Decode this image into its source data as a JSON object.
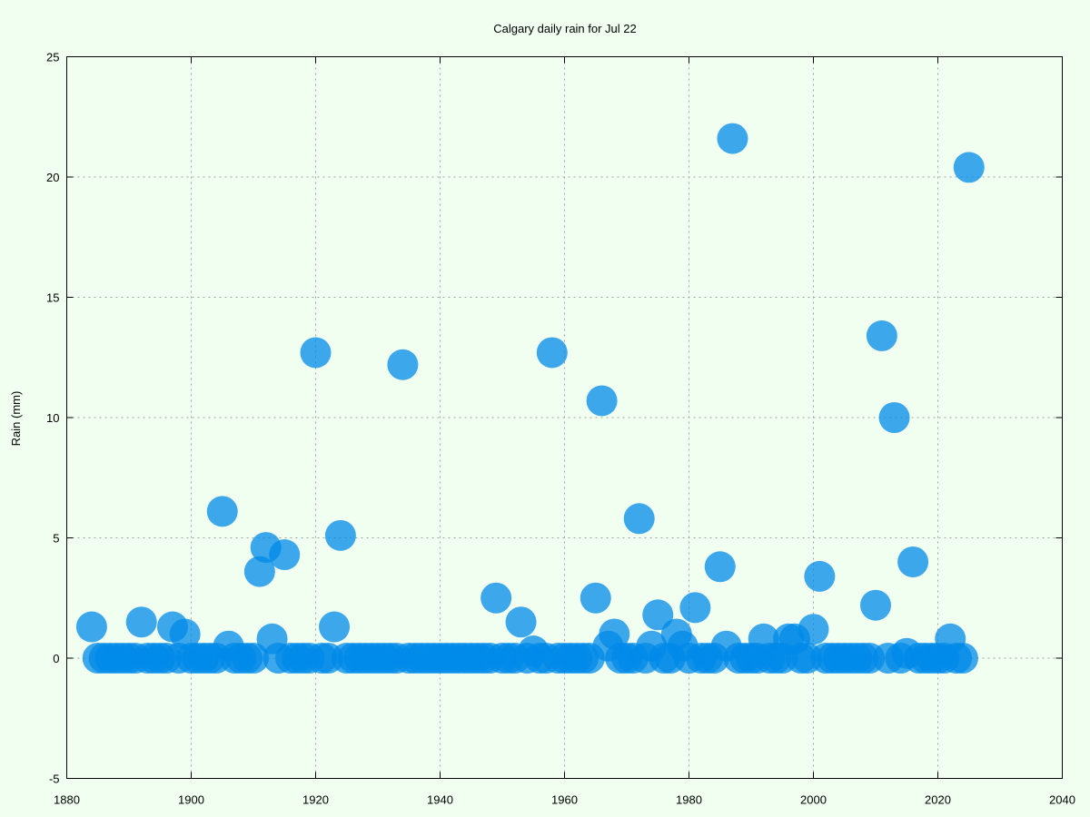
{
  "colors": {
    "background": "#f0fff0",
    "point": "#008ae8",
    "axis": "#000000",
    "grid": "#a0a0a0"
  },
  "chart_data": {
    "type": "scatter",
    "title": "Calgary daily rain for Jul 22",
    "xlabel": "",
    "ylabel": "Rain (mm)",
    "xlim": [
      1880,
      2040
    ],
    "ylim": [
      -5,
      25
    ],
    "x_ticks": [
      1880,
      1900,
      1920,
      1940,
      1960,
      1980,
      2000,
      2020,
      2040
    ],
    "y_ticks": [
      -5,
      0,
      5,
      10,
      15,
      20,
      25
    ],
    "grid": true,
    "legend": "none",
    "series": [
      {
        "x": [
          1884,
          1885,
          1886,
          1887,
          1888,
          1889,
          1890,
          1891,
          1892,
          1893,
          1894,
          1895,
          1896,
          1897,
          1898,
          1899,
          1900,
          1901,
          1902,
          1903,
          1904,
          1905,
          1906,
          1907,
          1908,
          1909,
          1910,
          1911,
          1912,
          1913,
          1914,
          1915,
          1916,
          1917,
          1918,
          1919,
          1920,
          1921,
          1922,
          1923,
          1924,
          1925,
          1926,
          1927,
          1928,
          1929,
          1930,
          1931,
          1932,
          1933,
          1934,
          1935,
          1936,
          1937,
          1938,
          1939,
          1940,
          1941,
          1942,
          1943,
          1944,
          1945,
          1946,
          1947,
          1948,
          1949,
          1950,
          1951,
          1952,
          1953,
          1954,
          1955,
          1956,
          1957,
          1958,
          1959,
          1960,
          1961,
          1962,
          1963,
          1964,
          1965,
          1966,
          1967,
          1968,
          1969,
          1970,
          1971,
          1972,
          1973,
          1974,
          1975,
          1976,
          1977,
          1978,
          1979,
          1980,
          1981,
          1982,
          1983,
          1984,
          1985,
          1986,
          1987,
          1988,
          1989,
          1990,
          1991,
          1992,
          1993,
          1994,
          1995,
          1996,
          1997,
          1998,
          1999,
          2000,
          2001,
          2002,
          2003,
          2004,
          2005,
          2006,
          2007,
          2008,
          2009,
          2010,
          2011,
          2012,
          2013,
          2014,
          2015,
          2016,
          2017,
          2018,
          2019,
          2020,
          2021,
          2022,
          2023,
          2024,
          2025
        ],
        "y": [
          1.3,
          0,
          0,
          0,
          0,
          0,
          0,
          0,
          1.5,
          0,
          0,
          0,
          0,
          1.3,
          0,
          1.0,
          0,
          0,
          0,
          0,
          0,
          6.1,
          0.5,
          0,
          0,
          0,
          0,
          3.6,
          4.6,
          0.8,
          0,
          4.3,
          0,
          0,
          0,
          0,
          12.7,
          0,
          0,
          1.3,
          5.1,
          0,
          0,
          0,
          0,
          0,
          0,
          0,
          0,
          0,
          12.2,
          0,
          0,
          0,
          0,
          0,
          0,
          0,
          0,
          0,
          0,
          0,
          0,
          0,
          0,
          2.5,
          0,
          0,
          0,
          1.5,
          0,
          0.3,
          0,
          0,
          12.7,
          0,
          0,
          0,
          0,
          0,
          0,
          2.5,
          10.7,
          0.5,
          1.0,
          0,
          0,
          0,
          5.8,
          0,
          0.5,
          1.8,
          0,
          0,
          1.0,
          0.5,
          0,
          2.1,
          0,
          0,
          0,
          3.8,
          0.5,
          21.6,
          0,
          0,
          0,
          0,
          0.8,
          0,
          0,
          0,
          0.8,
          0.8,
          0,
          0,
          1.2,
          3.4,
          0,
          0,
          0,
          0,
          0,
          0,
          0,
          0,
          2.2,
          13.4,
          0,
          10.0,
          0,
          0.2,
          4.0,
          0,
          0,
          0,
          0,
          0,
          0.8,
          0,
          0,
          20.4
        ]
      }
    ]
  }
}
